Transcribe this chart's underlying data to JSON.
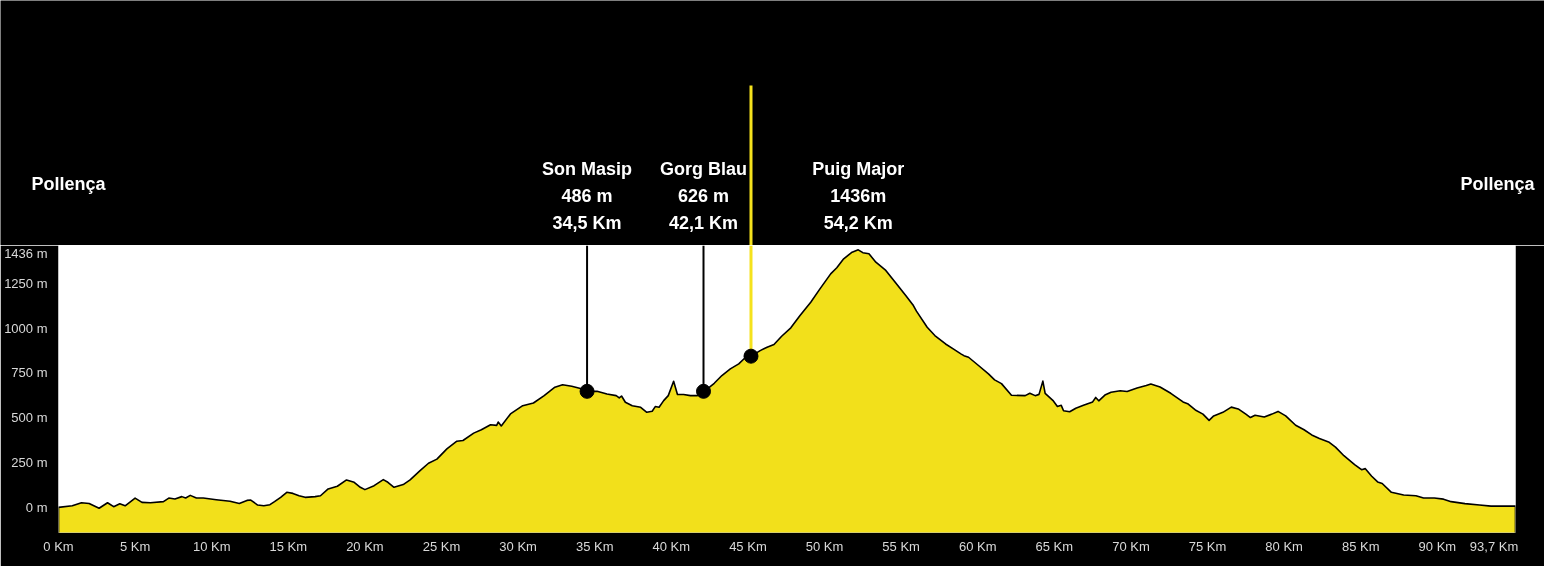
{
  "chart_data": {
    "type": "area",
    "xlim": [
      0,
      95.1
    ],
    "ylim": [
      -140,
      1460
    ],
    "xticks": [
      {
        "value": 0,
        "label": "0 Km"
      },
      {
        "value": 5,
        "label": "5 Km"
      },
      {
        "value": 10,
        "label": "10 Km"
      },
      {
        "value": 15,
        "label": "15 Km"
      },
      {
        "value": 20,
        "label": "20 Km"
      },
      {
        "value": 25,
        "label": "25 Km"
      },
      {
        "value": 30,
        "label": "30 Km"
      },
      {
        "value": 35,
        "label": "35 Km"
      },
      {
        "value": 40,
        "label": "40 Km"
      },
      {
        "value": 45,
        "label": "45 Km"
      },
      {
        "value": 50,
        "label": "50 Km"
      },
      {
        "value": 55,
        "label": "55 Km"
      },
      {
        "value": 60,
        "label": "60 Km"
      },
      {
        "value": 65,
        "label": "65 Km"
      },
      {
        "value": 70,
        "label": "70 Km"
      },
      {
        "value": 75,
        "label": "75 Km"
      },
      {
        "value": 80,
        "label": "80 Km"
      },
      {
        "value": 85,
        "label": "85 Km"
      },
      {
        "value": 90,
        "label": "90 Km"
      },
      {
        "value": 93.7,
        "label": "93,7 Km"
      }
    ],
    "yticks": [
      {
        "value": 0,
        "label": "0 m"
      },
      {
        "value": 250,
        "label": "250 m"
      },
      {
        "value": 500,
        "label": "500 m"
      },
      {
        "value": 750,
        "label": "750 m"
      },
      {
        "value": 1000,
        "label": "1000 m"
      },
      {
        "value": 1250,
        "label": "1250 m"
      },
      {
        "value": 1436,
        "label": "1436 m"
      }
    ],
    "series": [
      {
        "color": "#f2e01b",
        "x": [
          0,
          0.9,
          1.5,
          2.0,
          2.65,
          3.2,
          3.6,
          4.0,
          4.35,
          5.0,
          5.45,
          6.0,
          6.85,
          7.2,
          7.6,
          8.05,
          8.3,
          8.6,
          9.0,
          9.45,
          10.3,
          11.2,
          11.8,
          12.3,
          12.55,
          13.0,
          13.4,
          13.8,
          14.1,
          14.5,
          14.9,
          15.3,
          15.7,
          16.1,
          16.75,
          17.1,
          17.6,
          18.2,
          18.8,
          19.3,
          19.7,
          20.0,
          20.6,
          21.2,
          21.5,
          21.9,
          22.5,
          22.95,
          23.6,
          24.15,
          24.7,
          25.35,
          26.0,
          26.4,
          27.1,
          27.6,
          28.2,
          28.6,
          28.7,
          28.9,
          29.5,
          30.3,
          31.0,
          31.7,
          32.4,
          32.9,
          33.5,
          34.2,
          34.5,
          35.15,
          35.8,
          36.4,
          36.6,
          36.75,
          37.0,
          37.45,
          38.0,
          38.4,
          38.75,
          38.95,
          39.2,
          39.5,
          39.8,
          40.15,
          40.4,
          40.8,
          41.25,
          41.7,
          42.15,
          42.8,
          43.3,
          43.85,
          44.4,
          44.85,
          45.2,
          45.8,
          46.25,
          46.7,
          47.2,
          47.8,
          48.4,
          49.1,
          49.7,
          50.4,
          50.8,
          51.25,
          51.8,
          52.2,
          52.5,
          52.9,
          53.35,
          54.0,
          54.6,
          55.3,
          55.8,
          56.0,
          56.7,
          57.2,
          57.9,
          58.4,
          58.9,
          59.1,
          59.4,
          60.05,
          60.7,
          61.1,
          61.55,
          62.2,
          63.1,
          63.4,
          63.75,
          64.0,
          64.25,
          64.4,
          64.9,
          65.2,
          65.45,
          65.6,
          66.0,
          66.4,
          66.9,
          67.5,
          67.7,
          67.9,
          68.3,
          68.7,
          69.3,
          69.75,
          70.4,
          71.0,
          71.3,
          71.9,
          72.6,
          73.4,
          73.7,
          74.2,
          74.7,
          75.1,
          75.4,
          76.0,
          76.55,
          77.0,
          77.5,
          77.8,
          78.1,
          78.7,
          79.2,
          79.6,
          80.1,
          80.75,
          81.3,
          81.8,
          82.3,
          82.9,
          83.35,
          83.9,
          84.6,
          85.05,
          85.3,
          85.7,
          86.1,
          86.4,
          87.0,
          87.8,
          88.6,
          89.1,
          89.8,
          90.4,
          90.9,
          91.8,
          92.75,
          93.5,
          93.7,
          95.1
        ],
        "values": [
          0,
          9,
          26,
          22,
          -5,
          26,
          4,
          20,
          9,
          52,
          28,
          26,
          32,
          52,
          47,
          60,
          52,
          67,
          52,
          52,
          43,
          34,
          22,
          39,
          41,
          13,
          9,
          15,
          32,
          56,
          84,
          78,
          65,
          56,
          60,
          65,
          103,
          118,
          153,
          140,
          112,
          99,
          121,
          155,
          140,
          112,
          127,
          153,
          205,
          246,
          269,
          326,
          369,
          373,
          414,
          433,
          461,
          457,
          476,
          454,
          521,
          567,
          582,
          623,
          670,
          684,
          675,
          660,
          647,
          647,
          632,
          623,
          610,
          621,
          586,
          567,
          558,
          530,
          536,
          562,
          558,
          595,
          623,
          703,
          629,
          629,
          623,
          623,
          647,
          692,
          735,
          772,
          800,
          837,
          843,
          874,
          893,
          908,
          954,
          1001,
          1070,
          1144,
          1218,
          1302,
          1336,
          1386,
          1423,
          1436,
          1420,
          1414,
          1367,
          1321,
          1256,
          1181,
          1125,
          1094,
          1004,
          958,
          911,
          884,
          856,
          846,
          837,
          791,
          744,
          711,
          690,
          625,
          623,
          636,
          623,
          630,
          704,
          636,
          597,
          563,
          569,
          539,
          533,
          553,
          569,
          588,
          613,
          594,
          626,
          642,
          650,
          646,
          665,
          679,
          688,
          671,
          636,
          588,
          578,
          543,
          520,
          485,
          510,
          530,
          559,
          549,
          520,
          501,
          514,
          504,
          520,
          535,
          510,
          458,
          433,
          404,
          384,
          365,
          336,
          288,
          239,
          210,
          216,
          175,
          142,
          133,
          84,
          69,
          65,
          52,
          52,
          46,
          32,
          21,
          13,
          7,
          7,
          7
        ]
      },
      {
        "type": "scatter",
        "color": "#000000",
        "marker": "circle",
        "x": [
          34.5,
          42.1,
          45.2
        ],
        "values": [
          647,
          647,
          843
        ]
      }
    ],
    "ref_lines": [
      {
        "axis": "x",
        "value": 34.5,
        "label": "Son Masip\n486 m\n34,5 Km",
        "color": "#000000"
      },
      {
        "axis": "x",
        "value": 42.1,
        "label": "Gorg Blau\n626 m\n42,1 Km",
        "color": "#000000"
      },
      {
        "axis": "x",
        "value": 45.2,
        "color": "#f5e21d"
      }
    ],
    "annotations": [
      "Pollença",
      {
        "text": "Puig Major\n1436m\n54,2 Km",
        "x": 52.2,
        "y": 1436
      },
      "Pollença"
    ]
  }
}
